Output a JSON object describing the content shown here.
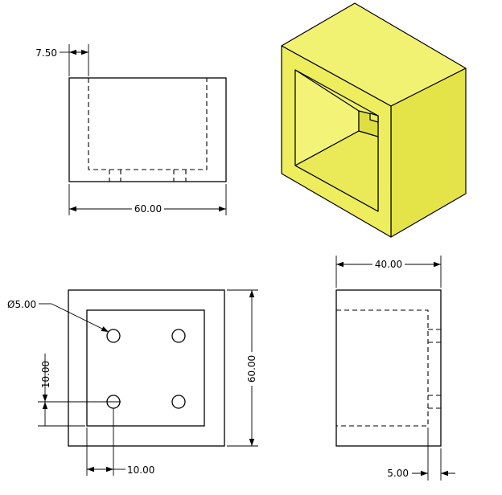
{
  "colors": {
    "body_face": "#ecec5c",
    "body_face_light": "#f4f47a",
    "body_face_dark": "#d8d840",
    "inner_face": "#e4e44e"
  },
  "front_view": {
    "width_dim": "60.00",
    "offset_dim": "7.50"
  },
  "iso_view": {},
  "top_view": {
    "hole_dim": "Ø5.00",
    "height_dim": "60.00",
    "spacing_y_dim": "10.00",
    "spacing_x_dim": "10.00"
  },
  "side_view": {
    "depth_dim": "40.00",
    "wall_dim": "5.00"
  }
}
